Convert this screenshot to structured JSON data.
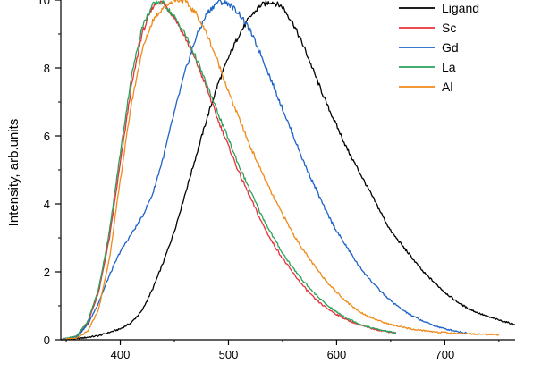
{
  "chart_data": {
    "type": "line",
    "title": "",
    "xlabel": "",
    "ylabel": "Intensity, arb.units",
    "xlim": [
      345,
      765
    ],
    "ylim": [
      0,
      10
    ],
    "x_ticks": [
      400,
      500,
      600,
      700
    ],
    "y_ticks": [
      0,
      2,
      4,
      6,
      8,
      10
    ],
    "grid": false,
    "legend_position": "top-right",
    "series": [
      {
        "name": "Ligand",
        "color": "#000000",
        "x": [
          345,
          360,
          380,
          400,
          410,
          420,
          430,
          440,
          450,
          460,
          470,
          480,
          490,
          500,
          510,
          520,
          530,
          540,
          550,
          560,
          570,
          580,
          590,
          600,
          610,
          620,
          630,
          640,
          650,
          660,
          670,
          680,
          690,
          700,
          710,
          720,
          730,
          740,
          750,
          765
        ],
        "values": [
          0.0,
          0.03,
          0.12,
          0.32,
          0.5,
          0.85,
          1.5,
          2.3,
          3.2,
          4.3,
          5.4,
          6.5,
          7.5,
          8.3,
          9.0,
          9.5,
          9.85,
          9.95,
          9.8,
          9.3,
          8.6,
          7.8,
          7.0,
          6.3,
          5.6,
          5.0,
          4.4,
          3.8,
          3.2,
          2.8,
          2.4,
          2.0,
          1.7,
          1.4,
          1.15,
          0.95,
          0.8,
          0.68,
          0.58,
          0.45
        ]
      },
      {
        "name": "Sc",
        "color": "#e8303a",
        "x": [
          345,
          360,
          370,
          380,
          390,
          400,
          410,
          420,
          430,
          435,
          440,
          450,
          460,
          470,
          480,
          490,
          500,
          510,
          520,
          530,
          540,
          550,
          560,
          570,
          580,
          590,
          600,
          610,
          620,
          630,
          640,
          655
        ],
        "values": [
          0.0,
          0.1,
          0.5,
          1.4,
          3.0,
          5.2,
          7.4,
          9.0,
          9.8,
          9.95,
          9.9,
          9.5,
          8.9,
          8.2,
          7.4,
          6.5,
          5.7,
          4.9,
          4.2,
          3.5,
          2.9,
          2.4,
          1.95,
          1.55,
          1.2,
          0.95,
          0.75,
          0.58,
          0.45,
          0.35,
          0.28,
          0.2
        ]
      },
      {
        "name": "Gd",
        "color": "#1e63c7",
        "x": [
          345,
          360,
          370,
          380,
          390,
          400,
          410,
          420,
          430,
          440,
          450,
          460,
          470,
          480,
          490,
          500,
          510,
          520,
          530,
          540,
          550,
          560,
          570,
          580,
          590,
          600,
          610,
          620,
          630,
          640,
          650,
          660,
          670,
          680,
          690,
          700,
          720
        ],
        "values": [
          0.0,
          0.1,
          0.45,
          1.1,
          1.9,
          2.6,
          3.1,
          3.6,
          4.3,
          5.4,
          6.7,
          7.9,
          8.9,
          9.6,
          9.95,
          9.9,
          9.6,
          9.1,
          8.4,
          7.6,
          6.8,
          6.0,
          5.2,
          4.5,
          3.8,
          3.2,
          2.7,
          2.2,
          1.8,
          1.45,
          1.15,
          0.9,
          0.7,
          0.55,
          0.42,
          0.32,
          0.2
        ]
      },
      {
        "name": "La",
        "color": "#2aa25b",
        "x": [
          345,
          360,
          370,
          380,
          390,
          400,
          410,
          420,
          430,
          435,
          440,
          450,
          460,
          470,
          480,
          490,
          500,
          510,
          520,
          530,
          540,
          550,
          560,
          570,
          580,
          590,
          600,
          610,
          620,
          630,
          640,
          655
        ],
        "values": [
          0.0,
          0.12,
          0.55,
          1.5,
          3.2,
          5.5,
          7.7,
          9.2,
          9.85,
          9.95,
          9.9,
          9.5,
          9.0,
          8.3,
          7.5,
          6.7,
          5.9,
          5.1,
          4.4,
          3.7,
          3.1,
          2.55,
          2.1,
          1.7,
          1.35,
          1.05,
          0.82,
          0.63,
          0.48,
          0.37,
          0.29,
          0.2
        ]
      },
      {
        "name": "Al",
        "color": "#f08a1a",
        "x": [
          345,
          360,
          370,
          380,
          390,
          400,
          410,
          420,
          430,
          440,
          450,
          455,
          460,
          470,
          480,
          490,
          500,
          510,
          520,
          530,
          540,
          550,
          560,
          570,
          580,
          590,
          600,
          610,
          620,
          630,
          640,
          650,
          660,
          670,
          680,
          690,
          700,
          720,
          740,
          750
        ],
        "values": [
          0.0,
          0.05,
          0.25,
          0.9,
          2.4,
          4.7,
          6.9,
          8.5,
          9.4,
          9.8,
          10.0,
          10.0,
          9.95,
          9.6,
          9.0,
          8.2,
          7.3,
          6.5,
          5.7,
          5.0,
          4.3,
          3.7,
          3.1,
          2.6,
          2.15,
          1.75,
          1.4,
          1.1,
          0.85,
          0.68,
          0.55,
          0.45,
          0.37,
          0.31,
          0.27,
          0.24,
          0.21,
          0.18,
          0.16,
          0.15
        ]
      }
    ]
  }
}
